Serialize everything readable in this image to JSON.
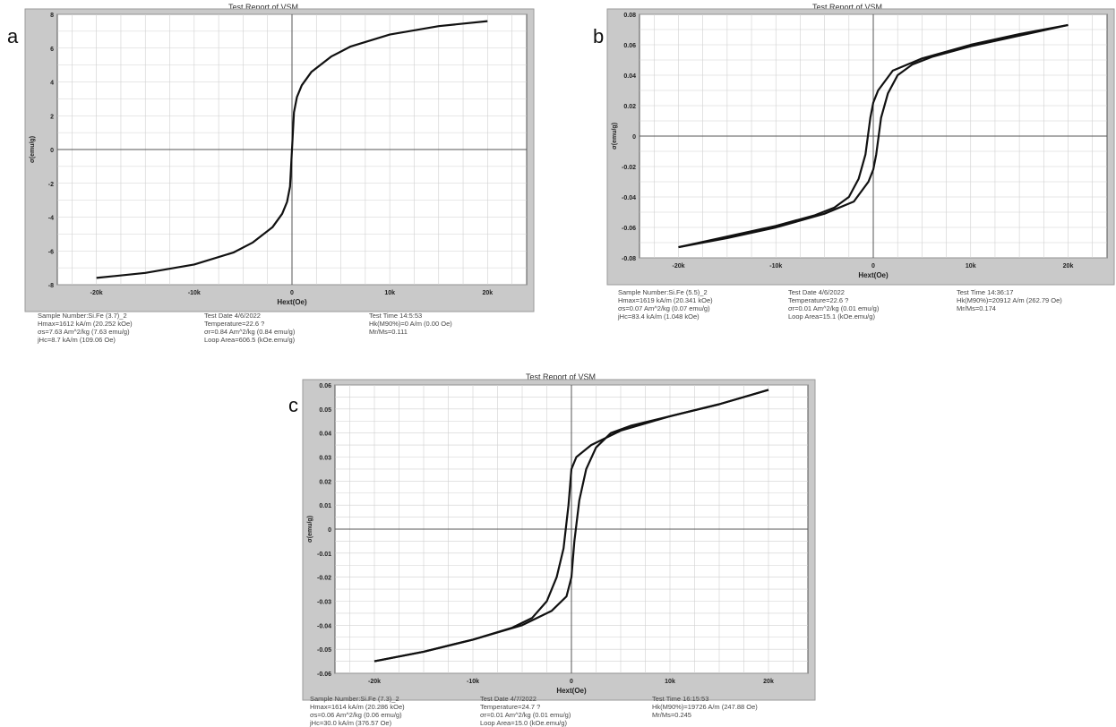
{
  "panels": [
    {
      "letter": "a",
      "title": "Test Report of VSM",
      "info": {
        "col1": [
          "Sample Number:Si.Fe (3.7)_2",
          "Hmax=1612 kA/m (20.252 kOe)",
          "σs=7.63 Am^2/kg (7.63 emu/g)",
          "jHc=8.7 kA/m (109.06 Oe)"
        ],
        "col2": [
          "Test Date 4/6/2022",
          "Temperature=22.6 ?",
          "σr=0.84 Am^2/kg (0.84 emu/g)",
          "Loop Area=606.5 (kOe.emu/g)"
        ],
        "col3": [
          "Test Time 14:5:53",
          "Hk(M90%)=0 A/m (0.00 Oe)",
          "Mr/Ms=0.111"
        ]
      }
    },
    {
      "letter": "b",
      "title": "Test Report of VSM",
      "info": {
        "col1": [
          "Sample Number:Si.Fe (5.5)_2",
          "Hmax=1619 kA/m (20.341 kOe)",
          "σs=0.07 Am^2/kg (0.07 emu/g)",
          "jHc=83.4 kA/m (1.048 kOe)"
        ],
        "col2": [
          "Test Date 4/6/2022",
          "Temperature=22.6 ?",
          "σr=0.01 Am^2/kg (0.01 emu/g)",
          "Loop Area=15.1 (kOe.emu/g)"
        ],
        "col3": [
          "Test Time 14:36:17",
          "Hk(M90%)=20912 A/m (262.79 Oe)",
          "Mr/Ms=0.174"
        ]
      }
    },
    {
      "letter": "c",
      "title": "Test Report of VSM",
      "info": {
        "col1": [
          "Sample Number:Si.Fe (7.3)_2",
          "Hmax=1614 kA/m (20.286 kOe)",
          "σs=0.06 Am^2/kg (0.06 emu/g)",
          "jHc=30.0 kA/m (376.57 Oe)"
        ],
        "col2": [
          "Test Date 4/7/2022",
          "Temperature=24.7 ?",
          "σr=0.01 Am^2/kg (0.01 emu/g)",
          "Loop Area=15.0 (kOe.emu/g)"
        ],
        "col3": [
          "Test Time 16:15:53",
          "Hk(M90%)=19726 A/m (247.88 Oe)",
          "Mr/Ms=0.245"
        ]
      }
    }
  ],
  "chart_data": [
    {
      "type": "line",
      "title": "Test Report of VSM",
      "xlabel": "Hext(Oe)",
      "ylabel": "σ(emu/g)",
      "xlim": [
        -24000,
        24000
      ],
      "ylim": [
        -8,
        8
      ],
      "xticks": [
        -20000,
        -10000,
        0,
        10000,
        20000
      ],
      "xtick_labels": [
        "-20k",
        "-10k",
        "0",
        "10k",
        "20k"
      ],
      "yticks": [
        -8,
        -6,
        -4,
        -2,
        0,
        2,
        4,
        6,
        8
      ],
      "ytick_labels": [
        "-8",
        "-6",
        "-4",
        "-2",
        "0",
        "2",
        "4",
        "6",
        "8"
      ],
      "grid": true,
      "series": [
        {
          "x": [
            -20000,
            -15000,
            -10000,
            -6000,
            -4000,
            -2000,
            -1000,
            -500,
            -200,
            0,
            200,
            500,
            1000,
            2000,
            4000,
            6000,
            10000,
            15000,
            20000
          ],
          "y": [
            -7.6,
            -7.3,
            -6.8,
            -6.1,
            -5.5,
            -4.6,
            -3.8,
            -3.1,
            -2.2,
            0,
            2.2,
            3.1,
            3.8,
            4.6,
            5.5,
            6.1,
            6.8,
            7.3,
            7.6
          ]
        }
      ]
    },
    {
      "type": "line",
      "title": "Test Report of VSM",
      "xlabel": "Hext(Oe)",
      "ylabel": "σ(emu/g)",
      "xlim": [
        -24000,
        24000
      ],
      "ylim": [
        -0.08,
        0.08
      ],
      "xticks": [
        -20000,
        -10000,
        0,
        10000,
        20000
      ],
      "xtick_labels": [
        "-20k",
        "-10k",
        "0",
        "10k",
        "20k"
      ],
      "yticks": [
        -0.08,
        -0.06,
        -0.04,
        -0.02,
        0,
        0.02,
        0.04,
        0.06,
        0.08
      ],
      "ytick_labels": [
        "-0.08",
        "-0.06",
        "-0.04",
        "-0.02",
        "0",
        "0.02",
        "0.04",
        "0.06",
        "0.08"
      ],
      "grid": true,
      "series": [
        {
          "x": [
            -20000,
            -15000,
            -10000,
            -6000,
            -4000,
            -2500,
            -1500,
            -800,
            -300,
            0,
            500,
            2000,
            5000,
            10000,
            15000,
            20000
          ],
          "y": [
            -0.073,
            -0.066,
            -0.059,
            -0.052,
            -0.047,
            -0.04,
            -0.028,
            -0.012,
            0.012,
            0.022,
            0.03,
            0.043,
            0.051,
            0.06,
            0.067,
            0.073
          ]
        },
        {
          "x": [
            20000,
            15000,
            10000,
            6000,
            4000,
            2500,
            1500,
            800,
            300,
            0,
            -500,
            -2000,
            -5000,
            -10000,
            -15000,
            -20000
          ],
          "y": [
            0.073,
            0.066,
            0.059,
            0.052,
            0.047,
            0.04,
            0.028,
            0.012,
            -0.012,
            -0.022,
            -0.03,
            -0.043,
            -0.051,
            -0.06,
            -0.067,
            -0.073
          ]
        }
      ]
    },
    {
      "type": "line",
      "title": "Test Report of VSM",
      "xlabel": "Hext(Oe)",
      "ylabel": "σ(emu/g)",
      "xlim": [
        -24000,
        24000
      ],
      "ylim": [
        -0.06,
        0.06
      ],
      "xticks": [
        -20000,
        -10000,
        0,
        10000,
        20000
      ],
      "xtick_labels": [
        "-20k",
        "-10k",
        "0",
        "10k",
        "20k"
      ],
      "yticks": [
        -0.06,
        -0.05,
        -0.04,
        -0.03,
        -0.02,
        -0.01,
        0,
        0.01,
        0.02,
        0.03,
        0.04,
        0.05,
        0.06
      ],
      "ytick_labels": [
        "-0.06",
        "-0.05",
        "-0.04",
        "-0.03",
        "-0.02",
        "-0.01",
        "0",
        "0.01",
        "0.02",
        "0.03",
        "0.04",
        "0.05",
        "0.06"
      ],
      "grid": true,
      "series": [
        {
          "x": [
            -20000,
            -15000,
            -10000,
            -6000,
            -4000,
            -2500,
            -1500,
            -800,
            -300,
            0,
            500,
            2000,
            5000,
            10000,
            15000,
            20000
          ],
          "y": [
            -0.055,
            -0.051,
            -0.046,
            -0.041,
            -0.037,
            -0.03,
            -0.02,
            -0.008,
            0.01,
            0.025,
            0.03,
            0.035,
            0.041,
            0.047,
            0.052,
            0.058
          ]
        },
        {
          "x": [
            20000,
            15000,
            10000,
            6000,
            4000,
            2500,
            1500,
            800,
            300,
            0,
            -500,
            -2000,
            -5000,
            -10000,
            -15000,
            -20000
          ],
          "y": [
            0.058,
            0.052,
            0.047,
            0.043,
            0.04,
            0.034,
            0.025,
            0.012,
            -0.005,
            -0.02,
            -0.028,
            -0.034,
            -0.04,
            -0.046,
            -0.051,
            -0.055
          ]
        }
      ]
    }
  ]
}
